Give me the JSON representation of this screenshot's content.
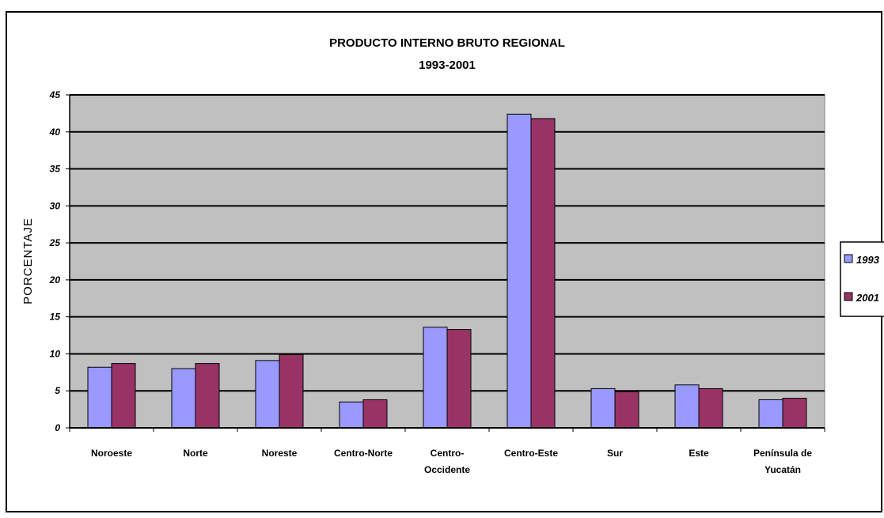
{
  "chart_data": {
    "type": "bar",
    "title": "PRODUCTO INTERNO BRUTO REGIONAL",
    "subtitle": "1993-2001",
    "ylabel": "PORCENTAJE",
    "xlabel": "",
    "ylim": [
      0,
      45
    ],
    "yticks": [
      0,
      5,
      10,
      15,
      20,
      25,
      30,
      35,
      40,
      45
    ],
    "grid": true,
    "legend_position": "right",
    "categories": [
      [
        "Noroeste"
      ],
      [
        "Norte"
      ],
      [
        "Noreste"
      ],
      [
        "Centro-Norte"
      ],
      [
        "Centro-",
        "Occidente"
      ],
      [
        "Centro-Este"
      ],
      [
        "Sur"
      ],
      [
        "Este"
      ],
      [
        "Península de",
        "Yucatán"
      ]
    ],
    "series": [
      {
        "name": "1993",
        "color": "#9999ff",
        "values": [
          8.2,
          8.0,
          9.1,
          3.5,
          13.6,
          42.4,
          5.3,
          5.8,
          3.8
        ]
      },
      {
        "name": "2001",
        "color": "#993366",
        "values": [
          8.7,
          8.7,
          9.9,
          3.8,
          13.3,
          41.8,
          4.9,
          5.3,
          4.0
        ]
      }
    ],
    "plot_background": "#c0c0c0"
  }
}
